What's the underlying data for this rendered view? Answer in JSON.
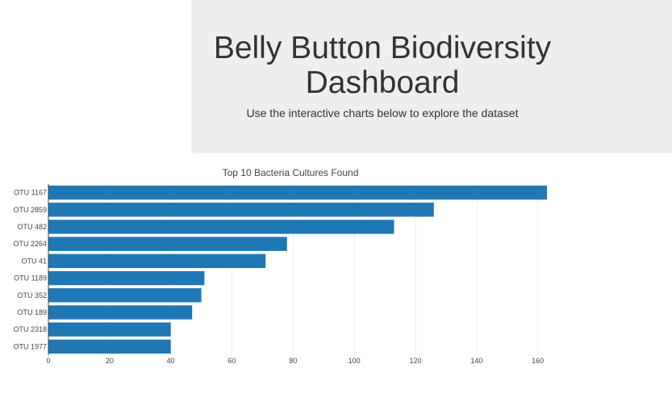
{
  "header": {
    "title_line1": "Belly Button Biodiversity",
    "title_line2": "Dashboard",
    "subtitle": "Use the interactive charts below to explore the dataset"
  },
  "colors": {
    "jumbotron_bg": "#eeeeee",
    "bar": "#1f77b4",
    "grid": "#eeeeee",
    "axis": "#444444"
  },
  "chart_data": {
    "type": "bar",
    "orientation": "horizontal",
    "title": "Top 10 Bacteria Cultures Found",
    "categories": [
      "OTU 1167",
      "OTU 2859",
      "OTU 482",
      "OTU 2264",
      "OTU 41",
      "OTU 1189",
      "OTU 352",
      "OTU 189",
      "OTU 2318",
      "OTU 1977"
    ],
    "values": [
      163,
      126,
      113,
      78,
      71,
      51,
      50,
      47,
      40,
      40
    ],
    "xlim": [
      0,
      168
    ],
    "xticks": [
      0,
      20,
      40,
      60,
      80,
      100,
      120,
      140,
      160
    ],
    "grid": true,
    "xlabel": "",
    "ylabel": ""
  }
}
